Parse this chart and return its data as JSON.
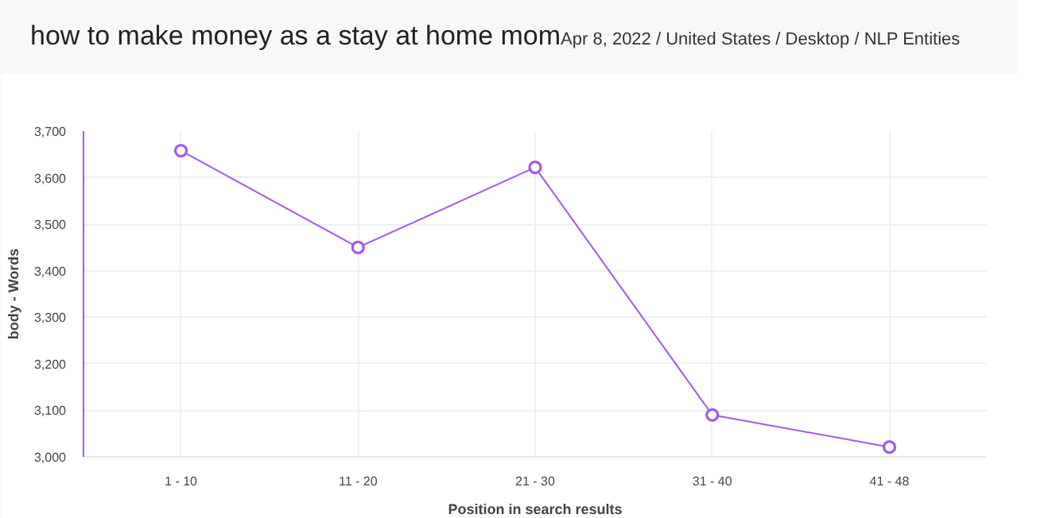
{
  "chart_data": {
    "type": "line",
    "title": "how to make money as a stay at home mom",
    "subtitle": "Apr 8, 2022 / United States / Desktop / NLP Entities",
    "xlabel": "Position in search results",
    "ylabel": "body - Words",
    "categories": [
      "1 - 10",
      "11 - 20",
      "21 - 30",
      "31 - 40",
      "41 - 48"
    ],
    "series": [
      {
        "color": "#a259e6",
        "values": [
          3658,
          3450,
          3622,
          3090,
          3021
        ]
      }
    ],
    "ylim": [
      3000,
      3700
    ],
    "yticks": [
      {
        "value": 3000,
        "label": "3,000"
      },
      {
        "value": 3100,
        "label": "3,100"
      },
      {
        "value": 3200,
        "label": "3,200"
      },
      {
        "value": 3300,
        "label": "3,300"
      },
      {
        "value": 3400,
        "label": "3,400"
      },
      {
        "value": 3500,
        "label": "3,500"
      },
      {
        "value": 3600,
        "label": "3,600"
      },
      {
        "value": 3700,
        "label": "3,700"
      }
    ],
    "grid": true,
    "marker": "circle",
    "line_style": "solid"
  }
}
